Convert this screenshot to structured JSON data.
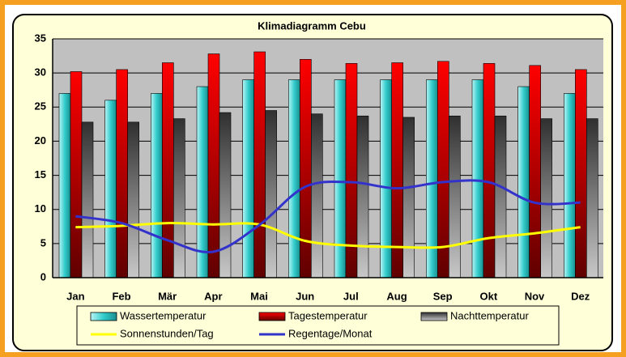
{
  "chart_data": {
    "type": "bar",
    "title": "Klimadiagramm Cebu",
    "categories": [
      "Jan",
      "Feb",
      "Mär",
      "Apr",
      "Mai",
      "Jun",
      "Jul",
      "Aug",
      "Sep",
      "Okt",
      "Nov",
      "Dez"
    ],
    "series": [
      {
        "name": "Wassertemperatur",
        "type": "bar",
        "color": "#33cccc",
        "values": [
          27,
          26,
          27,
          28,
          29,
          29,
          29,
          29,
          29,
          29,
          28,
          27
        ]
      },
      {
        "name": "Tagestemperatur",
        "type": "bar",
        "color": "#ff0000",
        "values": [
          30.2,
          30.5,
          31.5,
          32.8,
          33.1,
          32,
          31.4,
          31.5,
          31.7,
          31.4,
          31.1,
          30.5
        ]
      },
      {
        "name": "Nachttemperatur",
        "type": "bar",
        "color": "#808080",
        "values": [
          22.8,
          22.8,
          23.3,
          24.2,
          24.5,
          24,
          23.7,
          23.5,
          23.7,
          23.7,
          23.3,
          23.3
        ]
      },
      {
        "name": "Sonnenstunden/Tag",
        "type": "line",
        "color": "#ffff00",
        "values": [
          7.4,
          7.6,
          8,
          7.8,
          7.8,
          5.4,
          4.7,
          4.5,
          4.5,
          5.8,
          6.5,
          7.4
        ]
      },
      {
        "name": "Regentage/Monat",
        "type": "line",
        "color": "#3333cc",
        "values": [
          9,
          8,
          5.5,
          3.8,
          7.7,
          13.3,
          14,
          13.1,
          14,
          14,
          11,
          11
        ]
      }
    ],
    "ylim": [
      0,
      35
    ],
    "yticks": [
      0,
      5,
      10,
      15,
      20,
      25,
      30,
      35
    ],
    "grid": true
  }
}
